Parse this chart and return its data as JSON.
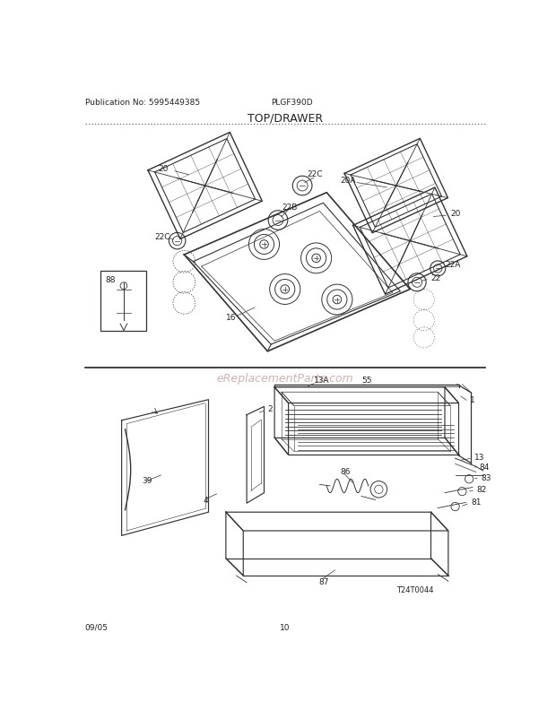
{
  "title": "TOP/DRAWER",
  "pub_no": "Publication No: 5995449385",
  "model": "PLGF390D",
  "date": "09/05",
  "page": "10",
  "watermark": "eReplacementParts.com",
  "watermark_color": "#ccaaaa",
  "bg_color": "#ffffff",
  "text_color": "#222222",
  "diagram_color": "#333333",
  "title_fontsize": 9,
  "label_fontsize": 6.5,
  "header_fontsize": 6.5,
  "footer_fontsize": 6.5
}
